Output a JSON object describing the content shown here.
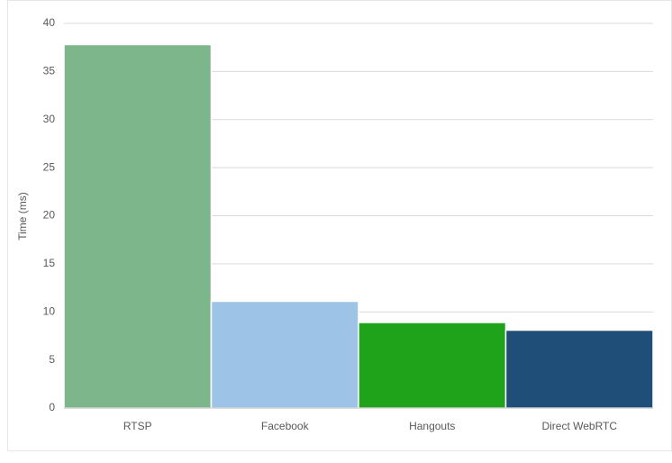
{
  "chart_data": {
    "type": "bar",
    "y_label": "Time (ms)",
    "categories": [
      "RTSP",
      "Facebook",
      "Hangouts",
      "Direct WebRTC"
    ],
    "values": [
      37.8,
      11.1,
      8.9,
      8.1
    ],
    "colors": [
      "#7db68a",
      "#9dc3e6",
      "#1fa31a",
      "#1f4e79"
    ],
    "ylim": [
      0,
      40
    ],
    "yticks": [
      0,
      5,
      10,
      15,
      20,
      25,
      30,
      35,
      40
    ],
    "grid": true
  }
}
